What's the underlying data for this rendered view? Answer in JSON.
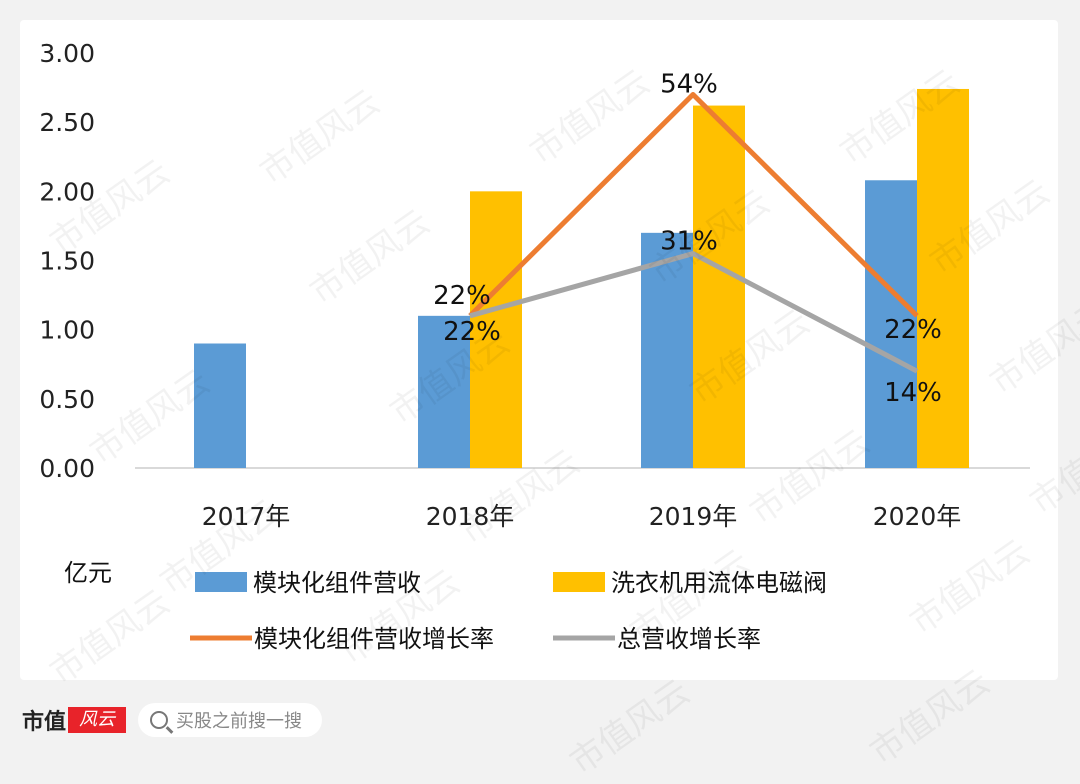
{
  "chart_data": {
    "type": "bar+line",
    "categories": [
      "2017年",
      "2018年",
      "2019年",
      "2020年"
    ],
    "ylabel": "亿元",
    "ylim": [
      0,
      3.0
    ],
    "yticks": [
      "0.00",
      "0.50",
      "1.00",
      "1.50",
      "2.00",
      "2.50",
      "3.00"
    ],
    "grid": false,
    "legend_position": "bottom",
    "bar_series": [
      {
        "name": "模块化组件营收",
        "color": "#5b9bd5",
        "values": [
          0.9,
          1.1,
          1.7,
          2.08
        ]
      },
      {
        "name": "洗衣机用流体电磁阀",
        "color": "#ffc000",
        "values": [
          null,
          2.0,
          2.62,
          2.74
        ]
      }
    ],
    "line_series": [
      {
        "name": "模块化组件营收增长率",
        "color": "#ed7d31",
        "values": [
          null,
          22,
          54,
          22
        ],
        "labels": [
          null,
          "22%",
          "54%",
          "22%"
        ]
      },
      {
        "name": "总营收增长率",
        "color": "#a5a5a5",
        "values": [
          null,
          22,
          31,
          14
        ],
        "labels": [
          null,
          "22%",
          "31%",
          "14%"
        ]
      }
    ],
    "secondary_ylim": [
      0,
      60
    ]
  },
  "footer": {
    "brand": "市值",
    "brand_logo": "风云",
    "search_placeholder": "买股之前搜一搜"
  },
  "watermark": "市值风云"
}
